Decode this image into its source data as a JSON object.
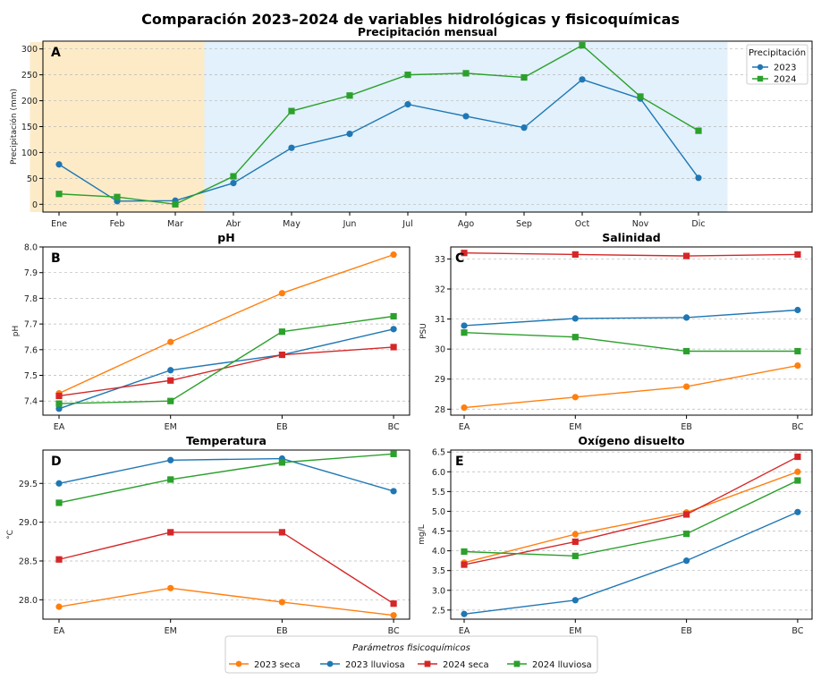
{
  "figure": {
    "title": "Comparación 2023–2024 de variables hidrológicas y fisicoquímicas",
    "legend_title": "Parámetros fisicoquímicos",
    "legend_items": [
      {
        "label": "2023 seca",
        "color": "#ff7f0e",
        "marker": "circle"
      },
      {
        "label": "2023 lluviosa",
        "color": "#1f77b4",
        "marker": "circle"
      },
      {
        "label": "2024 seca",
        "color": "#d62728",
        "marker": "square"
      },
      {
        "label": "2024 lluviosa",
        "color": "#2ca02c",
        "marker": "square"
      }
    ]
  },
  "chart_data": [
    {
      "id": "precip",
      "letter": "A",
      "type": "line",
      "title": "Precipitación mensual",
      "xlabel": "",
      "ylabel": "Precipitación (mm)",
      "categories": [
        "Ene",
        "Feb",
        "Mar",
        "Abr",
        "May",
        "Jun",
        "Jul",
        "Ago",
        "Sep",
        "Oct",
        "Nov",
        "Dic"
      ],
      "ylim": [
        -15,
        315
      ],
      "yticks": [
        0,
        50,
        100,
        150,
        200,
        250,
        300
      ],
      "grid": "y",
      "shaded_regions": [
        {
          "from": "Ene",
          "to": "Mar",
          "color": "#fdebc8"
        },
        {
          "from": "Abr",
          "to": "Dic",
          "color": "#e2f1fb"
        }
      ],
      "legend": {
        "title": "Precipitación",
        "position": "top-right"
      },
      "series": [
        {
          "name": "2023",
          "color": "#1f77b4",
          "marker": "circle",
          "values": [
            77,
            6,
            7,
            41,
            109,
            136,
            193,
            170,
            148,
            241,
            204,
            51
          ]
        },
        {
          "name": "2024",
          "color": "#2ca02c",
          "marker": "square",
          "values": [
            20,
            14,
            0,
            54,
            180,
            210,
            250,
            253,
            245,
            307,
            208,
            142
          ]
        }
      ]
    },
    {
      "id": "ph",
      "letter": "B",
      "type": "line",
      "title": "pH",
      "xlabel": "",
      "ylabel": "pH",
      "categories": [
        "EA",
        "EM",
        "EB",
        "BC"
      ],
      "ylim": [
        7.345,
        8.0
      ],
      "yticks": [
        7.4,
        7.5,
        7.6,
        7.7,
        7.8,
        7.9,
        8.0
      ],
      "ytick_decimals": 1,
      "grid": "y",
      "series": [
        {
          "name": "2023 seca",
          "color": "#ff7f0e",
          "marker": "circle",
          "values": [
            7.43,
            7.63,
            7.82,
            7.97
          ]
        },
        {
          "name": "2023 lluviosa",
          "color": "#1f77b4",
          "marker": "circle",
          "values": [
            7.37,
            7.52,
            7.58,
            7.68
          ]
        },
        {
          "name": "2024 seca",
          "color": "#d62728",
          "marker": "square",
          "values": [
            7.42,
            7.48,
            7.58,
            7.61
          ]
        },
        {
          "name": "2024 lluviosa",
          "color": "#2ca02c",
          "marker": "square",
          "values": [
            7.39,
            7.4,
            7.67,
            7.73
          ]
        }
      ]
    },
    {
      "id": "sal",
      "letter": "C",
      "type": "line",
      "title": "Salinidad",
      "xlabel": "",
      "ylabel": "PSU",
      "categories": [
        "EA",
        "EM",
        "EB",
        "BC"
      ],
      "ylim": [
        27.8,
        33.4
      ],
      "yticks": [
        28,
        29,
        30,
        31,
        32,
        33
      ],
      "ytick_decimals": 0,
      "grid": "y",
      "series": [
        {
          "name": "2023 seca",
          "color": "#ff7f0e",
          "marker": "circle",
          "values": [
            28.05,
            28.4,
            28.75,
            29.45
          ]
        },
        {
          "name": "2023 lluviosa",
          "color": "#1f77b4",
          "marker": "circle",
          "values": [
            30.78,
            31.02,
            31.05,
            31.3
          ]
        },
        {
          "name": "2024 seca",
          "color": "#d62728",
          "marker": "square",
          "values": [
            33.2,
            33.15,
            33.1,
            33.15
          ]
        },
        {
          "name": "2024 lluviosa",
          "color": "#2ca02c",
          "marker": "square",
          "values": [
            30.55,
            30.4,
            29.93,
            29.93
          ]
        }
      ]
    },
    {
      "id": "temp",
      "letter": "D",
      "type": "line",
      "title": "Temperatura",
      "xlabel": "",
      "ylabel": "°C",
      "categories": [
        "EA",
        "EM",
        "EB",
        "BC"
      ],
      "ylim": [
        27.75,
        29.93
      ],
      "yticks": [
        28.0,
        28.5,
        29.0,
        29.5
      ],
      "ytick_decimals": 1,
      "grid": "y",
      "series": [
        {
          "name": "2023 seca",
          "color": "#ff7f0e",
          "marker": "circle",
          "values": [
            27.91,
            28.15,
            27.97,
            27.8
          ]
        },
        {
          "name": "2023 lluviosa",
          "color": "#1f77b4",
          "marker": "circle",
          "values": [
            29.5,
            29.8,
            29.82,
            29.4
          ]
        },
        {
          "name": "2024 seca",
          "color": "#d62728",
          "marker": "square",
          "values": [
            28.52,
            28.87,
            28.87,
            27.95
          ]
        },
        {
          "name": "2024 lluviosa",
          "color": "#2ca02c",
          "marker": "square",
          "values": [
            29.25,
            29.55,
            29.77,
            29.88
          ]
        }
      ]
    },
    {
      "id": "oxy",
      "letter": "E",
      "type": "line",
      "title": "Oxígeno disuelto",
      "xlabel": "",
      "ylabel": "mg/L",
      "categories": [
        "EA",
        "EM",
        "EB",
        "BC"
      ],
      "ylim": [
        2.27,
        6.55
      ],
      "yticks": [
        2.5,
        3.0,
        3.5,
        4.0,
        4.5,
        5.0,
        5.5,
        6.0,
        6.5
      ],
      "ytick_decimals": 1,
      "grid": "y",
      "series": [
        {
          "name": "2023 seca",
          "color": "#ff7f0e",
          "marker": "circle",
          "values": [
            3.7,
            4.42,
            4.97,
            6.0
          ]
        },
        {
          "name": "2023 lluviosa",
          "color": "#1f77b4",
          "marker": "circle",
          "values": [
            2.4,
            2.75,
            3.75,
            4.98
          ]
        },
        {
          "name": "2024 seca",
          "color": "#d62728",
          "marker": "square",
          "values": [
            3.65,
            4.23,
            4.92,
            6.38
          ]
        },
        {
          "name": "2024 lluviosa",
          "color": "#2ca02c",
          "marker": "square",
          "values": [
            3.98,
            3.87,
            4.43,
            5.78
          ]
        }
      ]
    }
  ]
}
